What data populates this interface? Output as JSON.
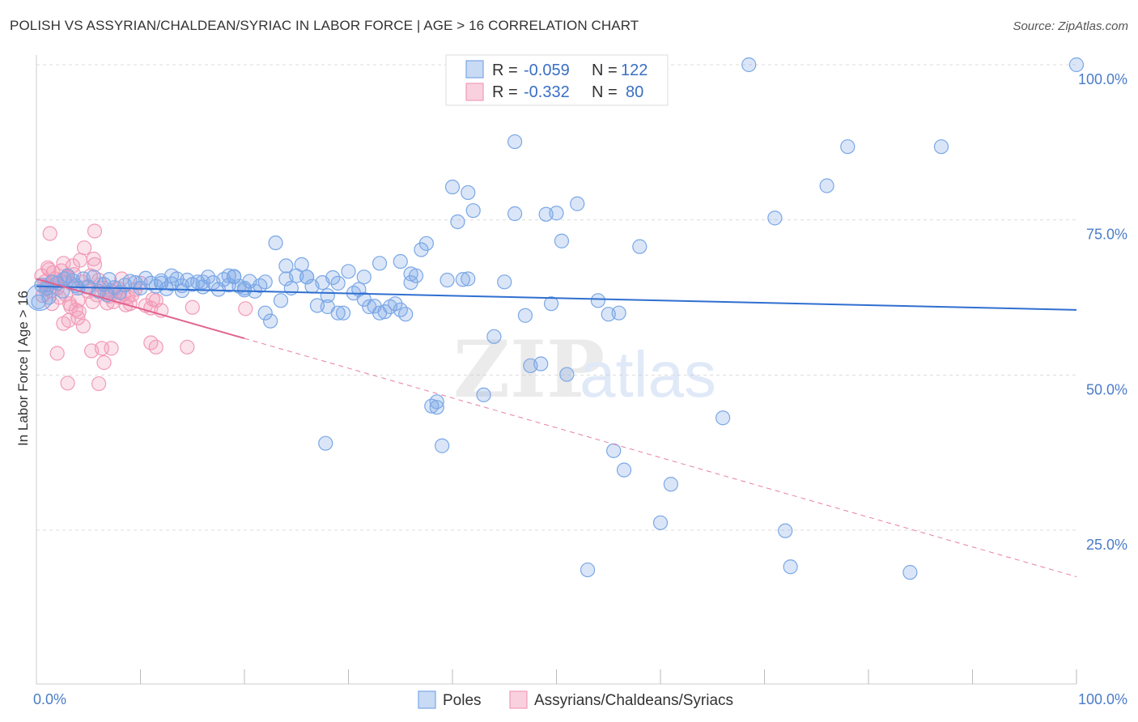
{
  "title": "POLISH VS ASSYRIAN/CHALDEAN/SYRIAC IN LABOR FORCE | AGE > 16 CORRELATION CHART",
  "source": "Source: ZipAtlas.com",
  "watermark": {
    "zip": "ZIP",
    "atlas": "atlas"
  },
  "legend_box": {
    "rows": [
      {
        "r_label": "R =",
        "r_value": "-0.059",
        "n_label": "N =",
        "n_value": "122",
        "color": "#7aa7e6"
      },
      {
        "r_label": "R =",
        "r_value": "-0.332",
        "n_label": "N =",
        "n_value": "80",
        "color": "#f29ab8"
      }
    ]
  },
  "chart_data": {
    "type": "scatter",
    "title": "POLISH VS ASSYRIAN/CHALDEAN/SYRIAC IN LABOR FORCE | AGE > 16 CORRELATION CHART",
    "xlabel": "",
    "ylabel": "In Labor Force | Age > 16",
    "xlim": [
      0,
      100
    ],
    "ylim": [
      0,
      102
    ],
    "x_tick_labels": [
      "0.0%",
      "100.0%"
    ],
    "y_tick_labels": [
      "25.0%",
      "50.0%",
      "75.0%",
      "100.0%"
    ],
    "y_ticks": [
      25,
      50,
      75,
      100
    ],
    "grid": true,
    "legend_position": "bottom",
    "series": [
      {
        "name": "Poles",
        "color": "#7aa7e6",
        "trend": {
          "x": [
            0,
            100
          ],
          "y": [
            64.3,
            60.5
          ],
          "dashed_from": null
        },
        "points": [
          [
            0.5,
            64.5
          ],
          [
            1,
            64
          ],
          [
            1.5,
            65
          ],
          [
            2,
            64.8
          ],
          [
            2.5,
            63.5
          ],
          [
            3,
            66
          ],
          [
            3.5,
            65.2
          ],
          [
            4,
            64
          ],
          [
            4.5,
            65.5
          ],
          [
            5,
            64.2
          ],
          [
            5.5,
            65.8
          ],
          [
            6,
            63.5
          ],
          [
            6.5,
            64.6
          ],
          [
            7,
            65.4
          ],
          [
            7.5,
            64.1
          ],
          [
            8,
            63.3
          ],
          [
            8.5,
            64.5
          ],
          [
            9,
            65.1
          ],
          [
            9.5,
            64.9
          ],
          [
            10,
            64
          ],
          [
            10.5,
            65.6
          ],
          [
            11,
            64.8
          ],
          [
            11.5,
            64.3
          ],
          [
            12,
            65.2
          ],
          [
            12.5,
            63.9
          ],
          [
            13,
            64.7
          ],
          [
            13.5,
            65.5
          ],
          [
            14,
            64.4
          ],
          [
            14.5,
            65.3
          ],
          [
            15,
            64.6
          ],
          [
            15.5,
            65
          ],
          [
            16,
            64.2
          ],
          [
            16.5,
            65.8
          ],
          [
            17,
            64.9
          ],
          [
            17.5,
            63.8
          ],
          [
            18,
            65.4
          ],
          [
            18.5,
            64.5
          ],
          [
            19,
            65.9
          ],
          [
            19.5,
            64.3
          ],
          [
            20,
            63.7
          ],
          [
            20.5,
            65.1
          ],
          [
            21,
            63.5
          ],
          [
            21.5,
            64.4
          ],
          [
            22,
            60
          ],
          [
            22.5,
            58.7
          ],
          [
            23,
            71.3
          ],
          [
            23.5,
            62
          ],
          [
            24,
            65.5
          ],
          [
            24.5,
            64
          ],
          [
            25,
            66
          ],
          [
            25.5,
            67.8
          ],
          [
            26,
            65.8
          ],
          [
            26.5,
            64.3
          ],
          [
            27,
            61.2
          ],
          [
            27.5,
            64.9
          ],
          [
            28,
            62.8
          ],
          [
            28.5,
            65.7
          ],
          [
            29,
            60
          ],
          [
            29.5,
            60
          ],
          [
            30,
            66.7
          ],
          [
            30.5,
            63.2
          ],
          [
            31,
            63.8
          ],
          [
            31.5,
            62.2
          ],
          [
            32,
            61
          ],
          [
            32.5,
            61.1
          ],
          [
            33,
            68
          ],
          [
            33.5,
            60.2
          ],
          [
            34,
            61
          ],
          [
            34.5,
            61.5
          ],
          [
            35,
            68.3
          ],
          [
            35.5,
            59.8
          ],
          [
            36,
            66.3
          ],
          [
            36.5,
            66
          ],
          [
            37,
            70.2
          ],
          [
            37.5,
            71.2
          ],
          [
            38,
            45
          ],
          [
            38.5,
            45.7
          ],
          [
            39,
            38.6
          ],
          [
            39.5,
            65.3
          ],
          [
            40,
            80.3
          ],
          [
            40.5,
            74.7
          ],
          [
            41,
            65.4
          ],
          [
            41.5,
            79.4
          ],
          [
            42,
            76.5
          ],
          [
            43,
            46.8
          ],
          [
            44,
            56.2
          ],
          [
            45,
            65
          ],
          [
            46,
            87.6
          ],
          [
            47,
            59.6
          ],
          [
            47.5,
            51.5
          ],
          [
            48.5,
            51.8
          ],
          [
            49,
            75.9
          ],
          [
            49.5,
            61.5
          ],
          [
            50,
            76.1
          ],
          [
            50.5,
            71.6
          ],
          [
            51,
            50.1
          ],
          [
            52,
            77.6
          ],
          [
            53,
            18.6
          ],
          [
            54,
            62
          ],
          [
            55,
            59.8
          ],
          [
            56,
            60
          ],
          [
            55.5,
            37.8
          ],
          [
            56.5,
            34.7
          ],
          [
            58,
            70.7
          ],
          [
            60,
            26.2
          ],
          [
            61,
            32.4
          ],
          [
            66,
            43.1
          ],
          [
            68.5,
            100
          ],
          [
            71,
            75.3
          ],
          [
            72,
            24.9
          ],
          [
            72.5,
            19.1
          ],
          [
            76,
            80.5
          ],
          [
            78,
            86.8
          ],
          [
            84,
            18.2
          ],
          [
            87,
            86.8
          ],
          [
            100,
            100
          ],
          [
            31.5,
            65.8
          ],
          [
            28,
            61
          ],
          [
            18.5,
            66
          ],
          [
            26,
            65.8
          ],
          [
            22,
            65
          ],
          [
            46,
            76
          ],
          [
            12,
            64.8
          ],
          [
            20,
            64
          ],
          [
            16,
            65
          ],
          [
            14,
            63.6
          ],
          [
            13,
            66
          ],
          [
            29,
            64.8
          ],
          [
            35,
            60.5
          ],
          [
            38.5,
            44.8
          ],
          [
            33,
            60
          ],
          [
            24,
            67.6
          ],
          [
            41.5,
            65.5
          ],
          [
            36,
            64.9
          ],
          [
            19,
            65.8
          ],
          [
            2.7,
            65.5
          ],
          [
            0.2,
            61.8
          ],
          [
            1.2,
            62.5
          ],
          [
            3.8,
            64.4
          ],
          [
            6.8,
            62.9
          ],
          [
            27.8,
            39
          ]
        ]
      },
      {
        "name": "Assyrians/Chaldeans/Syriacs",
        "color": "#f29ab8",
        "trend": {
          "x": [
            0,
            100
          ],
          "y": [
            65.5,
            17.5
          ],
          "solid_until": 20
        },
        "points": [
          [
            0.5,
            66
          ],
          [
            0.8,
            65
          ],
          [
            1,
            64.5
          ],
          [
            1.2,
            67
          ],
          [
            1.4,
            63.5
          ],
          [
            1.6,
            66.5
          ],
          [
            1.8,
            65.5
          ],
          [
            2,
            64
          ],
          [
            2.2,
            62.5
          ],
          [
            2.4,
            66.8
          ],
          [
            2.6,
            68
          ],
          [
            2.8,
            63
          ],
          [
            3,
            65.8
          ],
          [
            3.2,
            61.5
          ],
          [
            3.4,
            64.7
          ],
          [
            3.6,
            66.2
          ],
          [
            3.8,
            60.5
          ],
          [
            4,
            62
          ],
          [
            4.2,
            68.5
          ],
          [
            4.4,
            65
          ],
          [
            4.6,
            70.5
          ],
          [
            4.8,
            64.2
          ],
          [
            5,
            63.5
          ],
          [
            5.2,
            66
          ],
          [
            5.4,
            61.8
          ],
          [
            5.6,
            67.8
          ],
          [
            5.8,
            62.9
          ],
          [
            6,
            65.3
          ],
          [
            6.2,
            64.6
          ],
          [
            6.4,
            64
          ],
          [
            6.6,
            63.2
          ],
          [
            6.8,
            61.6
          ],
          [
            7,
            62.7
          ],
          [
            7.2,
            63.6
          ],
          [
            7.4,
            61.8
          ],
          [
            7.6,
            63.3
          ],
          [
            7.8,
            64
          ],
          [
            8,
            62.5
          ],
          [
            8.2,
            65.5
          ],
          [
            8.4,
            63
          ],
          [
            8.6,
            61.3
          ],
          [
            8.8,
            62.6
          ],
          [
            9,
            61.5
          ],
          [
            9.2,
            62.9
          ],
          [
            9.5,
            63.8
          ],
          [
            10,
            64.8
          ],
          [
            10.5,
            61.2
          ],
          [
            11,
            60.8
          ],
          [
            11.5,
            62
          ],
          [
            12,
            60.4
          ],
          [
            1.3,
            72.8
          ],
          [
            2,
            53.5
          ],
          [
            3,
            48.7
          ],
          [
            4,
            59.2
          ],
          [
            4.5,
            57.9
          ],
          [
            5.3,
            53.9
          ],
          [
            5.5,
            68.7
          ],
          [
            5.6,
            73.2
          ],
          [
            6,
            48.6
          ],
          [
            6.3,
            54.3
          ],
          [
            6.5,
            52
          ],
          [
            7.2,
            54.3
          ],
          [
            11,
            55.2
          ],
          [
            11.5,
            54.5
          ],
          [
            11.2,
            62.2
          ],
          [
            15,
            60.9
          ],
          [
            14.5,
            54.5
          ],
          [
            20.1,
            60.7
          ],
          [
            2.6,
            58.3
          ],
          [
            3.1,
            58.8
          ],
          [
            1.5,
            61.5
          ],
          [
            0.6,
            62.8
          ],
          [
            1.1,
            67.3
          ],
          [
            2.3,
            65.2
          ],
          [
            3.3,
            61
          ],
          [
            4.1,
            60.2
          ],
          [
            0.9,
            63.8
          ],
          [
            1.7,
            64.9
          ],
          [
            2.9,
            65.7
          ],
          [
            3.5,
            67.6
          ]
        ]
      }
    ]
  },
  "bottom_legend": [
    {
      "label": "Poles",
      "color": "#7aa7e6"
    },
    {
      "label": "Assyrians/Chaldeans/Syriacs",
      "color": "#f29ab8"
    }
  ]
}
